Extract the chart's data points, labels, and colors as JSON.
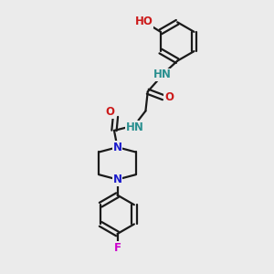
{
  "background_color": "#ebebeb",
  "bond_color": "#1a1a1a",
  "atom_colors": {
    "N": "#1a1acc",
    "O": "#cc1a1a",
    "F": "#cc00cc",
    "H_teal": "#2a9090",
    "C": "#1a1a1a"
  },
  "bond_width": 1.6,
  "font_size_atoms": 8.5,
  "figsize": [
    3.0,
    3.0
  ],
  "dpi": 100,
  "xlim": [
    0,
    10
  ],
  "ylim": [
    0,
    10
  ]
}
